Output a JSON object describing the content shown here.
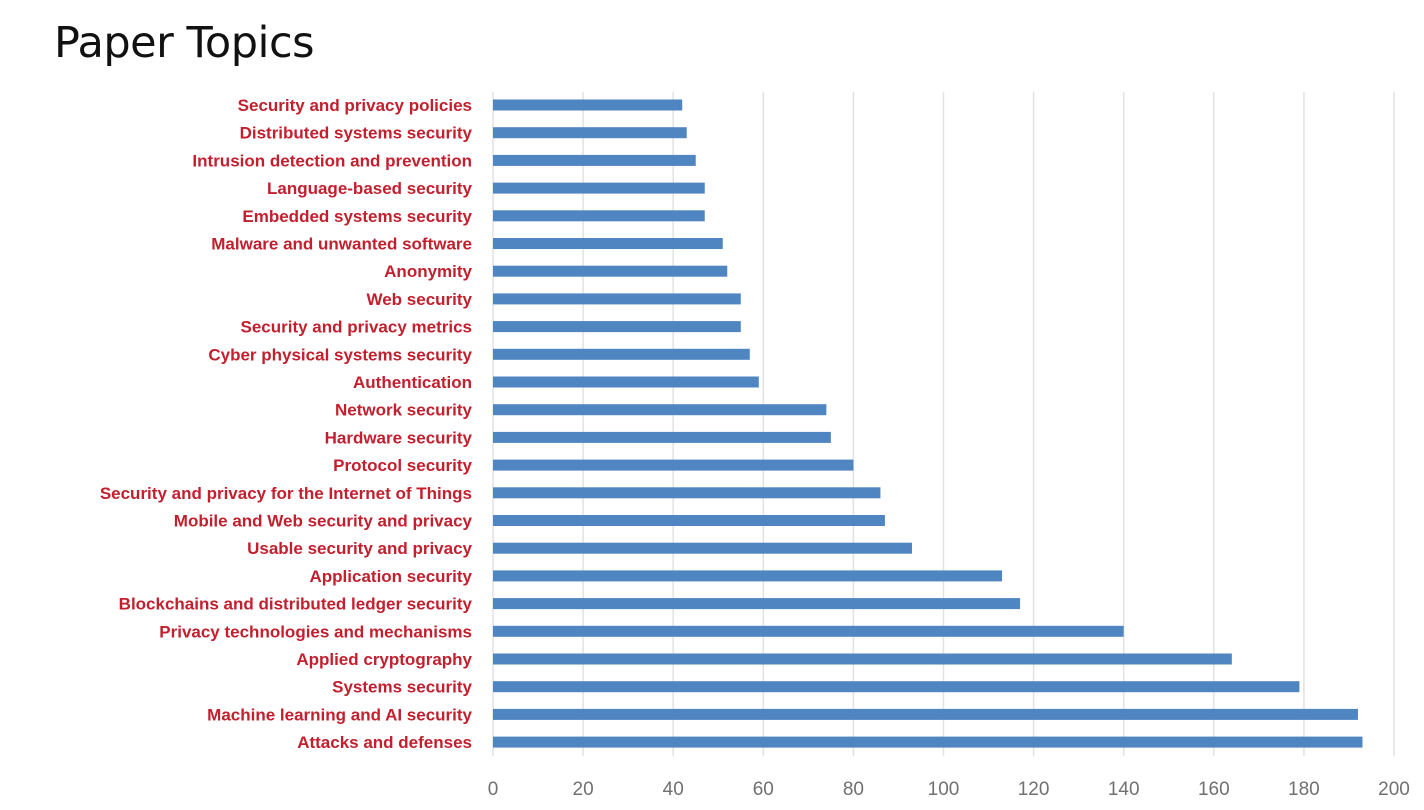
{
  "header": {
    "title": "Paper Topics"
  },
  "colors": {
    "bar": "#4f85c0",
    "label": "#c2202e",
    "grid": "#e2e2e6",
    "tick": "#707070"
  },
  "chart_data": {
    "type": "bar",
    "orientation": "horizontal",
    "title": "Paper Topics",
    "xlabel": "",
    "ylabel": "",
    "xlim": [
      0,
      200
    ],
    "grid": true,
    "legend": "none",
    "x_ticks": [
      "0",
      "20",
      "40",
      "60",
      "80",
      "100",
      "120",
      "140",
      "160",
      "180",
      "200"
    ],
    "x_tick_values": [
      0,
      20,
      40,
      60,
      80,
      100,
      120,
      140,
      160,
      180,
      200
    ],
    "categories": [
      "Security and privacy policies",
      "Distributed systems security",
      "Intrusion detection and prevention",
      "Language-based security",
      "Embedded systems security",
      "Malware and unwanted software",
      "Anonymity",
      "Web security",
      "Security and privacy metrics",
      "Cyber physical systems security",
      "Authentication",
      "Network security",
      "Hardware security",
      "Protocol security",
      "Security and privacy for the Internet of Things",
      "Mobile and Web security and privacy",
      "Usable security and privacy",
      "Application security",
      "Blockchains and distributed ledger security",
      "Privacy technologies and mechanisms",
      "Applied cryptography",
      "Systems security",
      "Machine learning and AI security",
      "Attacks and defenses"
    ],
    "values": [
      42,
      43,
      45,
      47,
      47,
      51,
      52,
      55,
      55,
      57,
      59,
      74,
      75,
      80,
      86,
      87,
      93,
      113,
      117,
      140,
      164,
      179,
      192,
      193
    ]
  }
}
